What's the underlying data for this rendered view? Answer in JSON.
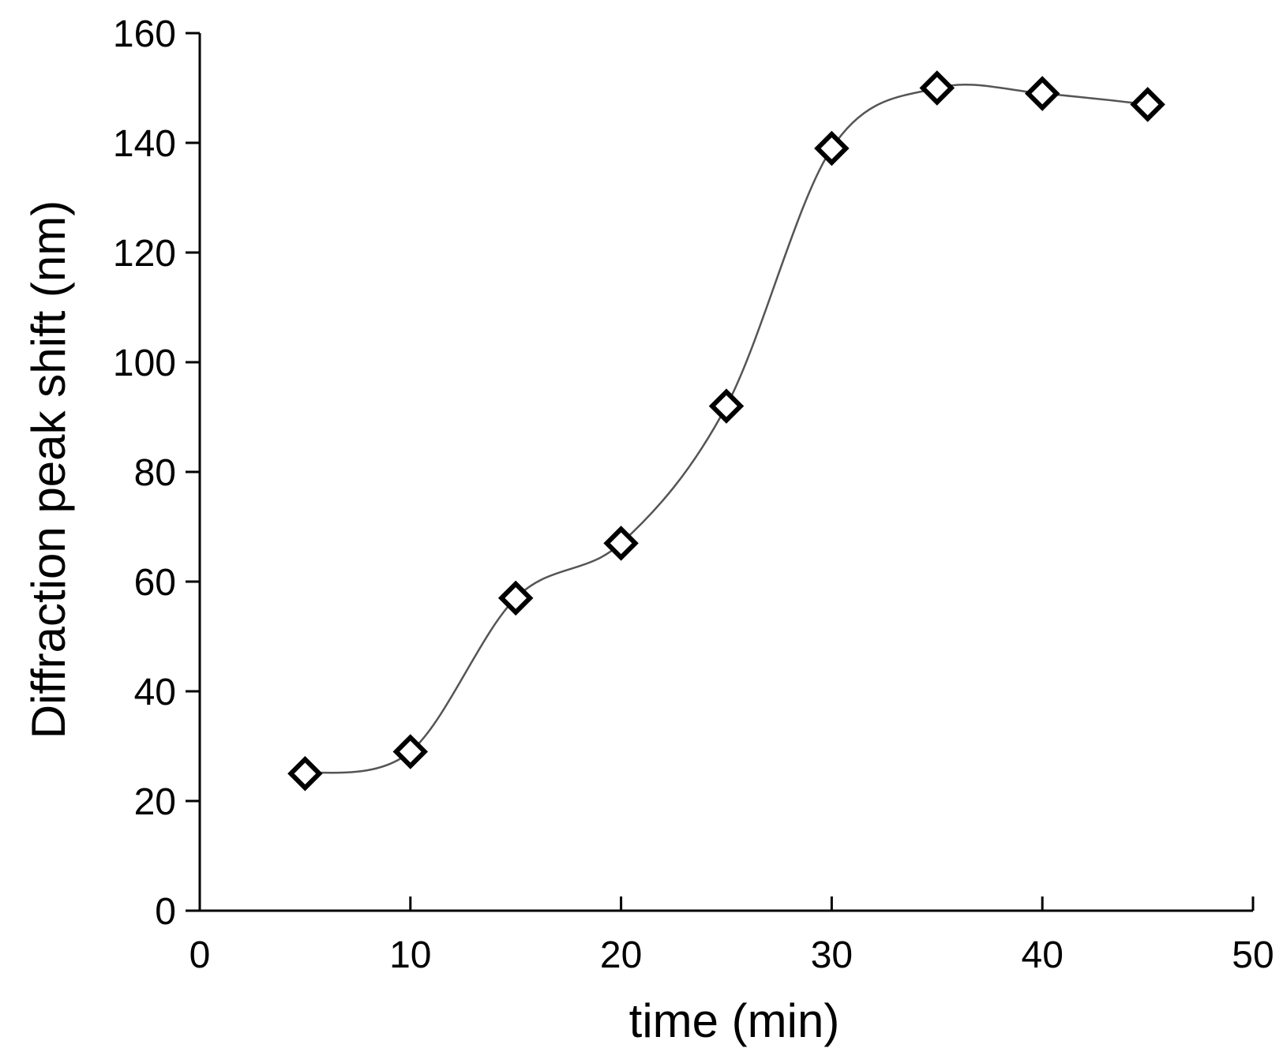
{
  "chart_data": {
    "type": "scatter",
    "title": "",
    "xlabel": "time (min)",
    "ylabel": "Diffraction peak shift (nm)",
    "xlim": [
      0,
      50
    ],
    "ylim": [
      0,
      160
    ],
    "xticks": [
      0,
      10,
      20,
      30,
      40,
      50
    ],
    "yticks": [
      0,
      20,
      40,
      60,
      80,
      100,
      120,
      140,
      160
    ],
    "grid": false,
    "legend": "none",
    "marker": "open-diamond",
    "connector": "smooth-line",
    "colors": {
      "marker": "#000000",
      "line": "#555555"
    },
    "series": [
      {
        "x": [
          5,
          10,
          15,
          20,
          25,
          30,
          35,
          40,
          45
        ],
        "y": [
          25,
          29,
          57,
          67,
          92,
          139,
          150,
          149,
          147
        ]
      }
    ]
  }
}
